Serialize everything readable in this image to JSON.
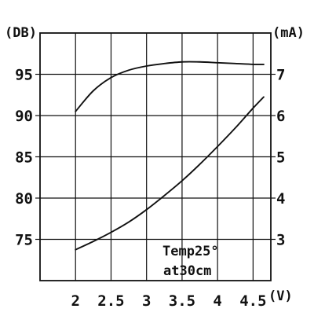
{
  "chart_data": {
    "type": "line",
    "title": "",
    "xlabel": "(V)",
    "ylabel_left": "(DB)",
    "ylabel_right": "(mA)",
    "xlim": [
      1.5,
      4.75
    ],
    "ylim_left": [
      70,
      100
    ],
    "ylim_right": [
      2,
      8
    ],
    "x_ticks": [
      2,
      2.5,
      3,
      3.5,
      4,
      4.5
    ],
    "x_tick_labels": [
      "2",
      "2.5",
      "3",
      "3.5",
      "4",
      "4.5"
    ],
    "y_left_ticks": [
      75,
      80,
      85,
      90,
      95
    ],
    "y_left_tick_labels": [
      "75",
      "80",
      "85",
      "90",
      "95"
    ],
    "y_right_ticks": [
      3,
      4,
      5,
      6,
      7
    ],
    "y_right_tick_labels": [
      "3",
      "4",
      "5",
      "6",
      "7"
    ],
    "grid": true,
    "series": [
      {
        "axis": "left",
        "x": [
          2.0,
          2.25,
          2.5,
          2.75,
          3.0,
          3.25,
          3.5,
          3.75,
          4.0,
          4.25,
          4.5,
          4.65
        ],
        "y": [
          90.5,
          93.0,
          94.6,
          95.5,
          96.0,
          96.3,
          96.5,
          96.5,
          96.4,
          96.3,
          96.2,
          96.2
        ]
      },
      {
        "axis": "right",
        "x": [
          2.0,
          2.25,
          2.5,
          2.75,
          3.0,
          3.25,
          3.5,
          3.75,
          4.0,
          4.25,
          4.5,
          4.65
        ],
        "y": [
          2.75,
          2.95,
          3.17,
          3.42,
          3.72,
          4.06,
          4.42,
          4.82,
          5.25,
          5.7,
          6.18,
          6.45
        ]
      }
    ],
    "annotation": [
      "Temp25°",
      "at30cm"
    ]
  }
}
